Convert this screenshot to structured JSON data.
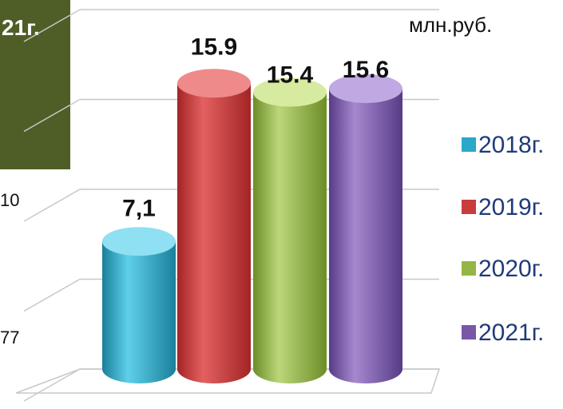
{
  "unit_label": "млн.руб.",
  "corner_box_text": "21г.",
  "left_ticks": [
    "10",
    "77"
  ],
  "colors": {
    "box": "#4e5e26",
    "2018": "#2aa8c8",
    "2019": "#c93c3c",
    "2020": "#95b545",
    "2021": "#7a58a8"
  },
  "chart_data": {
    "type": "bar",
    "categories": [
      "2018г.",
      "2019г.",
      "2020г.",
      "2021г."
    ],
    "values": [
      7.1,
      15.9,
      15.4,
      15.6
    ],
    "value_labels": [
      "7,1",
      "15.9",
      "15.4",
      "15.6"
    ],
    "ylim": [
      0,
      20
    ],
    "grid": true,
    "legend": "right",
    "title": "",
    "xlabel": "",
    "ylabel": ""
  }
}
